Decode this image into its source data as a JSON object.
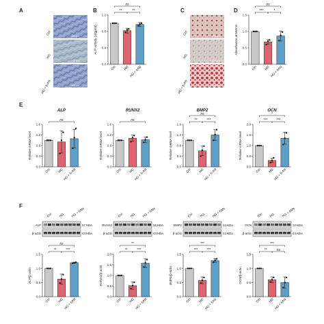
{
  "colors": {
    "ctrl": "#c8c8c8",
    "hg": "#e06470",
    "hg6an": "#5aa0c8",
    "dot": "#1a1a1a",
    "alp_stain": "#6c82b8",
    "ars_stain": "#c84040"
  },
  "panel_letters": {
    "A": "A",
    "B": "B",
    "C": "C",
    "D": "D",
    "E": "E",
    "F": "F"
  },
  "groups": [
    "Ctrl",
    "HG",
    "HG + 6-AN"
  ],
  "groups_short": [
    "Ctrl",
    "HG",
    "HG + 6AN"
  ],
  "scale_bar": "100 μm",
  "blots": [
    {
      "target": "ALP",
      "target_kda": "57 KDa",
      "loading": "β-actin",
      "loading_kda": "44 KDa"
    },
    {
      "target": "RUNX2",
      "target_kda": "56 KDa",
      "loading": "β-actin",
      "loading_kda": "44 KDa"
    },
    {
      "target": "BMP2",
      "target_kda": "44 KDa",
      "loading": "β-actin",
      "loading_kda": "44 KDa"
    },
    {
      "target": "OCN",
      "target_kda": "22 KDa",
      "loading": "β-actin",
      "loading_kda": "44 KDa"
    }
  ],
  "chart_data": [
    {
      "id": "B",
      "type": "bar",
      "categories": [
        "Ctrl",
        "HG",
        "HG + 6AN"
      ],
      "values": [
        1.0,
        0.82,
        0.97
      ],
      "errors": [
        0.0,
        0.06,
        0.05
      ],
      "points": [
        [
          1.0,
          1.0,
          1.0
        ],
        [
          0.78,
          0.84,
          0.86
        ],
        [
          0.94,
          0.98,
          1.0
        ]
      ],
      "ylabel": "ALP activity (U/gprot)",
      "ylim": [
        0,
        1.2
      ],
      "yticks": [
        0.0,
        0.4,
        0.8,
        1.2
      ],
      "sig": [
        {
          "from": 0,
          "to": 1,
          "label": "**",
          "level": 0
        },
        {
          "from": 1,
          "to": 2,
          "label": "**",
          "level": 0
        },
        {
          "from": 0,
          "to": 2,
          "label": "ns",
          "level": 1
        }
      ]
    },
    {
      "id": "D",
      "type": "bar",
      "categories": [
        "Ctrl",
        "HG",
        "HG + 6AN"
      ],
      "values": [
        1.0,
        0.68,
        0.86
      ],
      "errors": [
        0.0,
        0.07,
        0.15
      ],
      "points": [
        [
          1.0,
          1.0,
          1.0
        ],
        [
          0.6,
          0.7,
          0.74
        ],
        [
          0.72,
          0.88,
          0.98
        ]
      ],
      "ylabel": "Absorbance at 560nm",
      "ylim": [
        0,
        1.5
      ],
      "yticks": [
        0.0,
        0.5,
        1.0,
        1.5
      ],
      "sig": [
        {
          "from": 0,
          "to": 1,
          "label": "***",
          "level": 0
        },
        {
          "from": 1,
          "to": 2,
          "label": "*",
          "level": 0
        },
        {
          "from": 0,
          "to": 2,
          "label": "ns",
          "level": 1
        }
      ]
    },
    {
      "id": "E1",
      "title": "ALP",
      "type": "bar",
      "categories": [
        "Ctrl",
        "HG",
        "HG + 6-AN"
      ],
      "values": [
        1.0,
        0.94,
        1.06
      ],
      "errors": [
        0.0,
        0.42,
        0.35
      ],
      "points": [
        [
          1.0,
          1.0,
          1.0
        ],
        [
          0.5,
          1.0,
          1.3
        ],
        [
          0.7,
          1.1,
          1.45
        ]
      ],
      "ylabel": "Relative mRNA level",
      "ylim": [
        0,
        1.6
      ],
      "yticks": [
        0.0,
        0.4,
        0.8,
        1.2,
        1.6
      ],
      "sig": [
        {
          "from": 0,
          "to": 2,
          "label": "ns",
          "level": 0
        }
      ]
    },
    {
      "id": "E2",
      "title": "RUNX2",
      "type": "bar",
      "categories": [
        "Ctrl",
        "HG",
        "HG + 6-AN"
      ],
      "values": [
        1.0,
        1.08,
        1.02
      ],
      "errors": [
        0.0,
        0.12,
        0.1
      ],
      "points": [
        [
          1.0,
          1.0,
          1.0
        ],
        [
          0.95,
          1.1,
          1.18
        ],
        [
          0.92,
          1.02,
          1.12
        ]
      ],
      "ylabel": "Relative mRNA level",
      "ylim": [
        0,
        1.6
      ],
      "yticks": [
        0.0,
        0.4,
        0.8,
        1.2,
        1.6
      ],
      "sig": [
        {
          "from": 0,
          "to": 2,
          "label": "ns",
          "level": 0
        }
      ]
    },
    {
      "id": "E3",
      "title": "BMP2",
      "type": "bar",
      "categories": [
        "Ctrl",
        "HG",
        "HG + 6-AN"
      ],
      "values": [
        1.0,
        0.6,
        1.2
      ],
      "errors": [
        0.0,
        0.18,
        0.2
      ],
      "points": [
        [
          1.0,
          1.0,
          1.0
        ],
        [
          0.4,
          0.62,
          0.78
        ],
        [
          1.0,
          1.22,
          1.4
        ]
      ],
      "ylabel": "Relative mRNA level",
      "ylim": [
        0,
        1.6
      ],
      "yticks": [
        0.0,
        0.4,
        0.8,
        1.2,
        1.6
      ],
      "sig": [
        {
          "from": 0,
          "to": 1,
          "label": "**",
          "level": 0
        },
        {
          "from": 1,
          "to": 2,
          "label": "***",
          "level": 0
        },
        {
          "from": 0,
          "to": 2,
          "label": "ns",
          "level": 1
        }
      ]
    },
    {
      "id": "E4",
      "title": "OCN",
      "type": "bar",
      "categories": [
        "Ctrl",
        "HG",
        "HG + 6-AN"
      ],
      "values": [
        1.0,
        0.3,
        1.35
      ],
      "errors": [
        0.0,
        0.1,
        0.28
      ],
      "points": [
        [
          1.0,
          1.0,
          1.0
        ],
        [
          0.2,
          0.3,
          0.42
        ],
        [
          1.05,
          1.35,
          1.6
        ]
      ],
      "ylabel": "Relative mRNA level",
      "ylim": [
        0,
        2.0
      ],
      "yticks": [
        0.0,
        0.5,
        1.0,
        1.5,
        2.0
      ],
      "sig": [
        {
          "from": 0,
          "to": 1,
          "label": "***",
          "level": 0
        },
        {
          "from": 1,
          "to": 2,
          "label": "***",
          "level": 0
        },
        {
          "from": 0,
          "to": 2,
          "label": "*",
          "level": 1
        }
      ]
    },
    {
      "id": "F1",
      "type": "bar",
      "categories": [
        "Ctrl",
        "HG",
        "HG + 6AN"
      ],
      "values": [
        1.0,
        0.62,
        1.2
      ],
      "errors": [
        0.0,
        0.18,
        0.02
      ],
      "points": [
        [
          1.0,
          1.0,
          1.0
        ],
        [
          0.48,
          0.62,
          0.78
        ],
        [
          1.18,
          1.2,
          1.22
        ]
      ],
      "ylabel": "ALP/β-actin",
      "ylim": [
        0,
        1.5
      ],
      "yticks": [
        0.0,
        0.5,
        1.0,
        1.5
      ],
      "sig": [
        {
          "from": 0,
          "to": 1,
          "label": "**",
          "level": 0
        },
        {
          "from": 1,
          "to": 2,
          "label": "***",
          "level": 0
        },
        {
          "from": 0,
          "to": 2,
          "label": "ns",
          "level": 1
        }
      ]
    },
    {
      "id": "F2",
      "type": "bar",
      "categories": [
        "Ctrl",
        "HG",
        "HG + 6AN"
      ],
      "values": [
        1.0,
        0.52,
        1.58
      ],
      "errors": [
        0.0,
        0.17,
        0.2
      ],
      "points": [
        [
          1.0,
          1.0,
          1.0
        ],
        [
          0.38,
          0.52,
          0.68
        ],
        [
          1.4,
          1.6,
          1.75
        ]
      ],
      "ylabel": "RUNX2/β-actin",
      "ylim": [
        0,
        2.0
      ],
      "yticks": [
        0.0,
        0.5,
        1.0,
        1.5,
        2.0
      ],
      "sig": [
        {
          "from": 0,
          "to": 1,
          "label": "**",
          "level": 0
        },
        {
          "from": 1,
          "to": 2,
          "label": "***",
          "level": 0
        },
        {
          "from": 0,
          "to": 2,
          "label": "**",
          "level": 1
        }
      ]
    },
    {
      "id": "F3",
      "type": "bar",
      "categories": [
        "Ctrl",
        "HG",
        "HG + 6AN"
      ],
      "values": [
        1.0,
        0.58,
        1.28
      ],
      "errors": [
        0.0,
        0.12,
        0.06
      ],
      "points": [
        [
          1.0,
          1.0,
          1.0
        ],
        [
          0.48,
          0.58,
          0.68
        ],
        [
          1.22,
          1.28,
          1.34
        ]
      ],
      "ylabel": "BMP2/β-actin",
      "ylim": [
        0,
        1.5
      ],
      "yticks": [
        0.0,
        0.5,
        1.0,
        1.5
      ],
      "sig": [
        {
          "from": 0,
          "to": 1,
          "label": "***",
          "level": 0
        },
        {
          "from": 1,
          "to": 2,
          "label": "***",
          "level": 0
        },
        {
          "from": 0,
          "to": 2,
          "label": "***",
          "level": 1
        }
      ]
    },
    {
      "id": "F4",
      "type": "bar",
      "categories": [
        "Ctrl",
        "HG",
        "HG + 6AN"
      ],
      "values": [
        1.0,
        0.6,
        0.5
      ],
      "errors": [
        0.0,
        0.1,
        0.2
      ],
      "points": [
        [
          1.0,
          1.0,
          1.0
        ],
        [
          0.52,
          0.6,
          0.68
        ],
        [
          0.32,
          0.5,
          0.68
        ]
      ],
      "ylabel": "OCN/β-actin",
      "ylim": [
        0,
        1.5
      ],
      "yticks": [
        0.0,
        0.5,
        1.0,
        1.5
      ],
      "sig": [
        {
          "from": 0,
          "to": 1,
          "label": "**",
          "level": 0
        },
        {
          "from": 1,
          "to": 2,
          "label": "ns",
          "level": 0
        },
        {
          "from": 0,
          "to": 2,
          "label": "***",
          "level": 1
        }
      ]
    }
  ]
}
